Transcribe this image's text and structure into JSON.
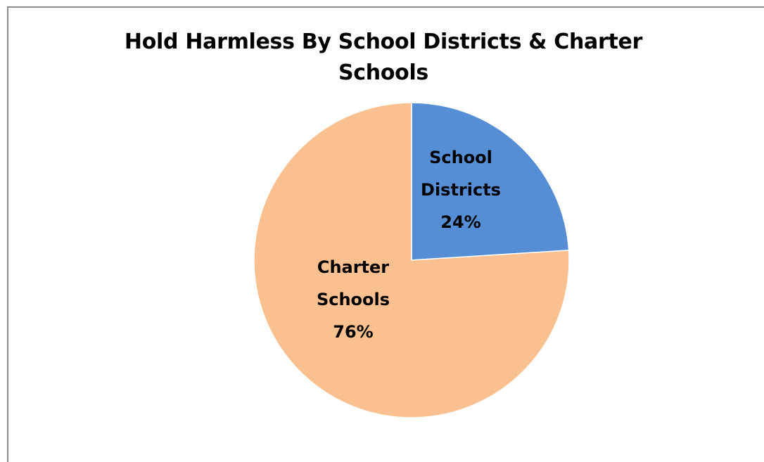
{
  "chart_data": {
    "type": "pie",
    "title": "Hold Harmless By School Districts & Charter Schools",
    "slices": [
      {
        "label": "School Districts",
        "label_lines": [
          "School",
          "Districts"
        ],
        "value": 24,
        "value_label": "24%",
        "color": "#558ed5"
      },
      {
        "label": "Charter Schools",
        "label_lines": [
          "Charter",
          "Schools"
        ],
        "value": 76,
        "value_label": "76%",
        "color": "#fac090"
      }
    ],
    "start_angle_deg": 0,
    "direction": "clockwise",
    "legend": "none"
  }
}
